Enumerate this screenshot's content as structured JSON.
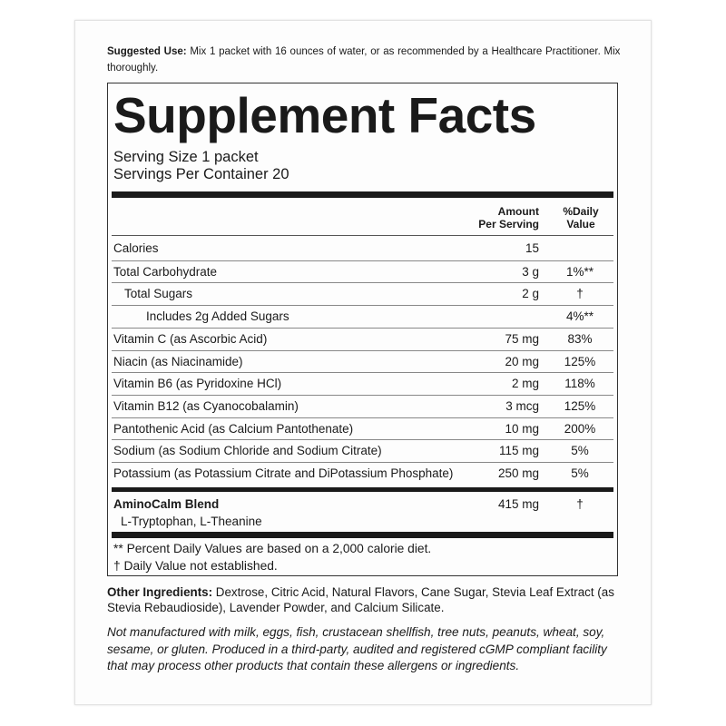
{
  "suggested_use": {
    "label": "Suggested Use:",
    "text": " Mix 1 packet with 16 ounces of water, or as recommended by a Healthcare Practitioner. Mix thoroughly."
  },
  "facts": {
    "title": "Supplement Facts",
    "serving_size": "Serving Size 1 packet",
    "servings_per_container": "Servings Per Container 20",
    "col_amount": [
      "Amount",
      "Per Serving"
    ],
    "col_dv": [
      "%Daily",
      "Value"
    ],
    "rows": [
      {
        "name": "Calories",
        "amount": "15",
        "dv": ""
      },
      {
        "name": "Total Carbohydrate",
        "amount": "3 g",
        "dv": "1%**"
      },
      {
        "name": "Total Sugars",
        "amount": "2 g",
        "dv": "†"
      },
      {
        "name": "Includes 2g Added Sugars",
        "amount": "",
        "dv": "4%**"
      },
      {
        "name": "Vitamin C (as Ascorbic Acid)",
        "amount": "75 mg",
        "dv": "83%"
      },
      {
        "name": "Niacin (as Niacinamide)",
        "amount": "20 mg",
        "dv": "125%"
      },
      {
        "name": "Vitamin B6 (as Pyridoxine HCl)",
        "amount": "2 mg",
        "dv": "118%"
      },
      {
        "name": "Vitamin B12 (as Cyanocobalamin)",
        "amount": "3 mcg",
        "dv": "125%"
      },
      {
        "name": "Pantothenic Acid (as Calcium Pantothenate)",
        "amount": "10 mg",
        "dv": "200%"
      },
      {
        "name": "Sodium (as Sodium Chloride and Sodium Citrate)",
        "amount": "115 mg",
        "dv": "5%"
      },
      {
        "name": "Potassium (as Potassium Citrate and DiPotassium Phosphate)",
        "amount": "250 mg",
        "dv": "5%"
      }
    ],
    "blend": {
      "name": "AminoCalm Blend",
      "amount": "415 mg",
      "dv": "†",
      "ingredients": "L-Tryptophan, L-Theanine"
    },
    "footnotes": [
      "** Percent Daily Values are based on a 2,000 calorie diet.",
      "† Daily Value not established."
    ]
  },
  "other_ingredients": {
    "label": "Other Ingredients:",
    "text": " Dextrose, Citric Acid, Natural Flavors, Cane Sugar, Stevia Leaf Extract (as Stevia Rebaudioside), Lavender Powder, and Calcium Silicate."
  },
  "allergen_statement": "Not manufactured with milk, eggs, fish, crustacean shellfish, tree nuts, peanuts, wheat, soy, sesame, or gluten. Produced in a third-party, audited and registered cGMP compliant facility that may process other products that contain these allergens or ingredients."
}
